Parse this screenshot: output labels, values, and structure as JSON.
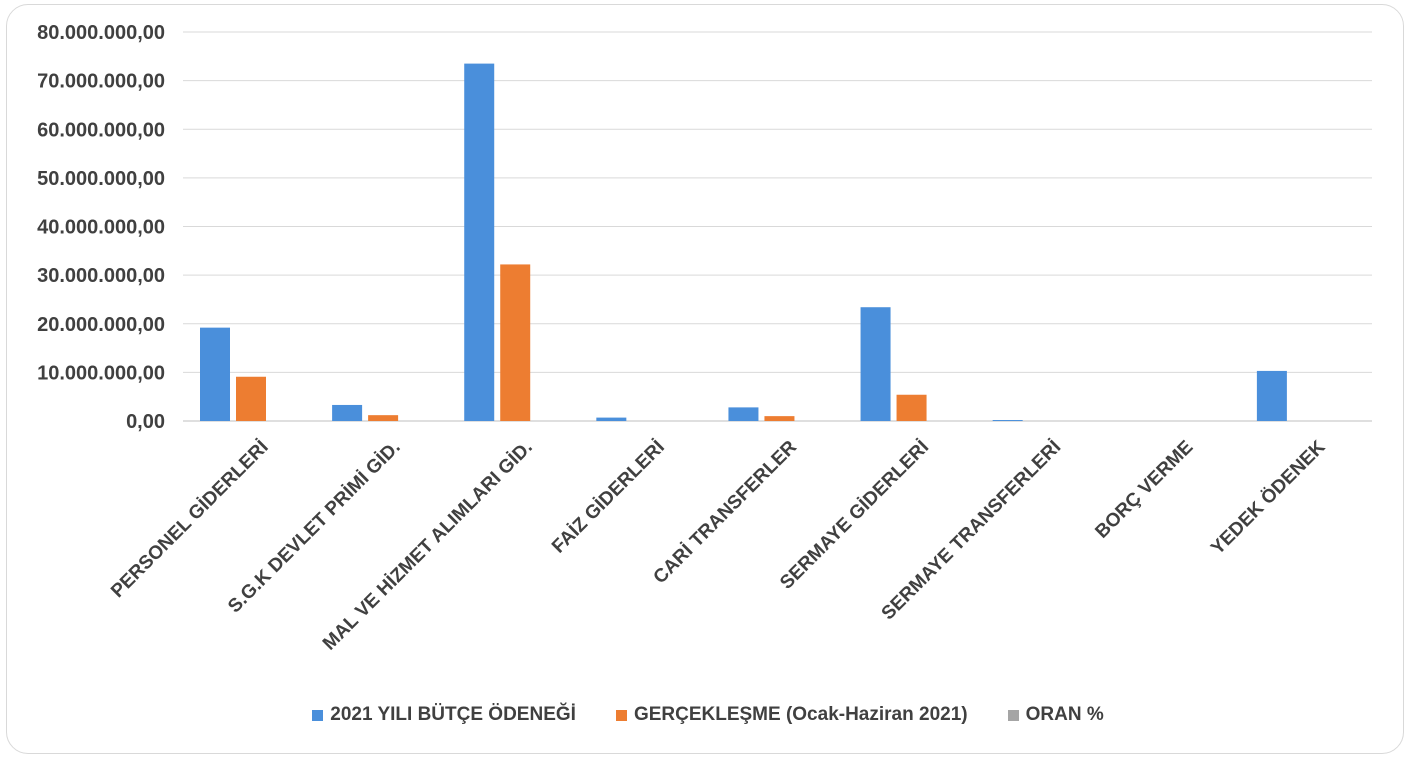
{
  "chart_data": {
    "type": "bar",
    "title": "",
    "xlabel": "",
    "ylabel": "",
    "ylim": [
      0,
      80000000
    ],
    "yticks": [
      "0,00",
      "10.000.000,00",
      "20.000.000,00",
      "30.000.000,00",
      "40.000.000,00",
      "50.000.000,00",
      "60.000.000,00",
      "70.000.000,00",
      "80.000.000,00"
    ],
    "ytick_values": [
      0,
      10000000,
      20000000,
      30000000,
      40000000,
      50000000,
      60000000,
      70000000,
      80000000
    ],
    "grid": true,
    "legend_position": "bottom",
    "categories": [
      "PERSONEL GİDERLERİ",
      "S.G.K DEVLET PRİMİ GİD.",
      "MAL VE HİZMET ALIMLARI GİD.",
      "FAİZ GİDERLERİ",
      "CARİ TRANSFERLER",
      "SERMAYE GİDERLERİ",
      "SERMAYE TRANSFERLERİ",
      "BORÇ VERME",
      "YEDEK ÖDENEK"
    ],
    "series": [
      {
        "name": "2021 YILI BÜTÇE ÖDENEĞİ",
        "color": "#4a8fdb",
        "values": [
          19200000,
          3300000,
          73500000,
          700000,
          2800000,
          23400000,
          200000,
          0,
          10300000
        ]
      },
      {
        "name": "GERÇEKLEŞME (Ocak-Haziran 2021)",
        "color": "#ed7d31",
        "values": [
          9100000,
          1200000,
          32200000,
          0,
          1000000,
          5400000,
          0,
          0,
          0
        ]
      },
      {
        "name": "ORAN %",
        "color": "#a5a5a5",
        "values": [
          47,
          36,
          44,
          0,
          36,
          23,
          0,
          0,
          0
        ]
      }
    ]
  }
}
